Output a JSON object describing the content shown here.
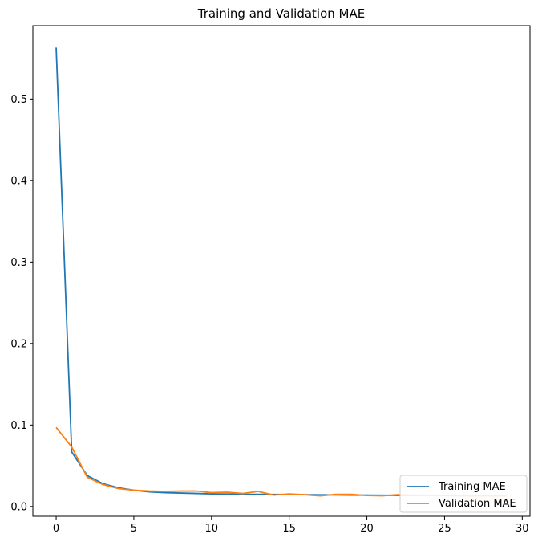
{
  "chart_data": {
    "type": "line",
    "title": "Training and Validation MAE",
    "xlabel": "",
    "ylabel": "",
    "xlim": [
      -1.5,
      30.5
    ],
    "ylim": [
      -0.012,
      0.59
    ],
    "xticks": [
      0,
      5,
      10,
      15,
      20,
      25,
      30
    ],
    "yticks": [
      0.0,
      0.1,
      0.2,
      0.3,
      0.4,
      0.5
    ],
    "ytick_labels": [
      "0.0",
      "0.1",
      "0.2",
      "0.3",
      "0.4",
      "0.5"
    ],
    "grid": false,
    "legend_position": "lower-right",
    "series": [
      {
        "name": "Training MAE",
        "color": "#1f77b4",
        "x": [
          0,
          1,
          2,
          3,
          4,
          5,
          6,
          7,
          8,
          9,
          10,
          11,
          12,
          13,
          14,
          15,
          16,
          17,
          18,
          19,
          20,
          21,
          22,
          23,
          24,
          25,
          26,
          27,
          28,
          29
        ],
        "values": [
          0.563,
          0.067,
          0.038,
          0.028,
          0.023,
          0.02,
          0.018,
          0.017,
          0.0165,
          0.016,
          0.0155,
          0.0153,
          0.015,
          0.015,
          0.0148,
          0.0147,
          0.0145,
          0.0143,
          0.0142,
          0.014,
          0.0139,
          0.0138,
          0.0137,
          0.0136,
          0.0135,
          0.0134,
          0.0133,
          0.0132,
          0.0131,
          0.013
        ]
      },
      {
        "name": "Validation MAE",
        "color": "#ff7f0e",
        "x": [
          0,
          1,
          2,
          3,
          4,
          5,
          6,
          7,
          8,
          9,
          10,
          11,
          12,
          13,
          14,
          15,
          16,
          17,
          18,
          19,
          20,
          21,
          22,
          23,
          24,
          25,
          26,
          27,
          28,
          29
        ],
        "values": [
          0.097,
          0.073,
          0.036,
          0.027,
          0.022,
          0.02,
          0.019,
          0.0185,
          0.019,
          0.019,
          0.017,
          0.0175,
          0.016,
          0.0185,
          0.014,
          0.0155,
          0.0145,
          0.013,
          0.015,
          0.015,
          0.0135,
          0.0132,
          0.0145,
          0.0138,
          0.0135,
          0.0135,
          0.0132,
          0.013,
          0.013,
          0.013
        ]
      }
    ]
  }
}
